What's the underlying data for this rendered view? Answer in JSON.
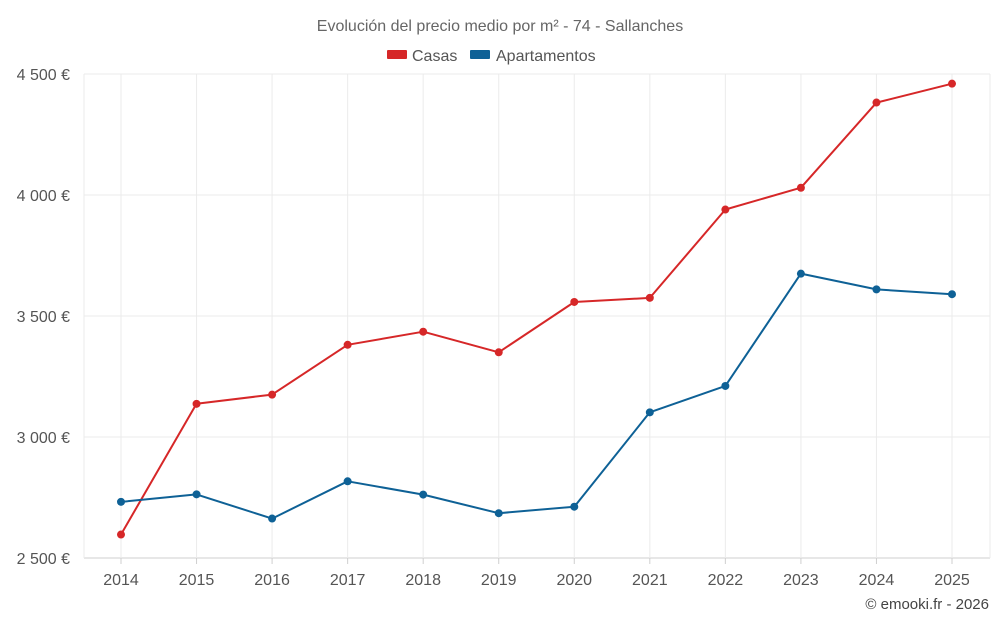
{
  "chart_data": {
    "type": "line",
    "title": "Evolución del precio medio por m² - 74 - Sallanches",
    "xlabel": "",
    "ylabel": "",
    "categories": [
      "2014",
      "2015",
      "2016",
      "2017",
      "2018",
      "2019",
      "2020",
      "2021",
      "2022",
      "2023",
      "2024",
      "2025"
    ],
    "ylim": [
      2500,
      4500
    ],
    "yticks": [
      2500,
      3000,
      3500,
      4000,
      4500
    ],
    "ytick_labels": [
      "2 500 €",
      "3 000 €",
      "3 500 €",
      "4 000 €",
      "4 500 €"
    ],
    "grid": true,
    "legend_position": "top-center",
    "series": [
      {
        "name": "Casas",
        "color": "#d62728",
        "values": [
          2597,
          3137,
          3175,
          3381,
          3435,
          3350,
          3558,
          3575,
          3940,
          4030,
          4382,
          4460
        ]
      },
      {
        "name": "Apartamentos",
        "color": "#0e6196",
        "values": [
          2732,
          2763,
          2663,
          2817,
          2762,
          2685,
          2712,
          3102,
          3211,
          3675,
          3610,
          3590
        ]
      }
    ],
    "credit": "© emooki.fr - 2026"
  }
}
